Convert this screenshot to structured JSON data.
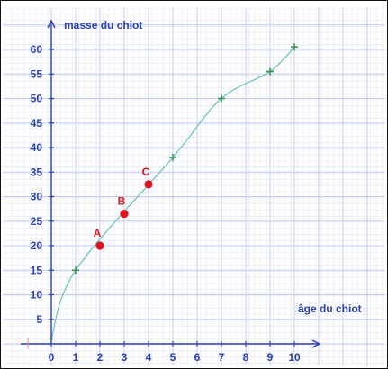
{
  "chart_data": {
    "type": "line",
    "title": "",
    "ylabel": "masse du chiot",
    "xlabel": "âge du chiot",
    "xlim": [
      0,
      10
    ],
    "ylim": [
      0,
      60
    ],
    "x_ticks": [
      0,
      1,
      2,
      3,
      4,
      5,
      6,
      7,
      8,
      9,
      10
    ],
    "y_ticks": [
      5,
      10,
      15,
      20,
      25,
      30,
      35,
      40,
      45,
      50,
      55,
      60
    ],
    "grid": true,
    "series": [
      {
        "x": [
          0,
          1,
          5,
          7,
          9,
          10
        ],
        "y": [
          1,
          15,
          38,
          50,
          55.5,
          60.5
        ],
        "marker": "plus",
        "color": "#3f8f5a"
      }
    ],
    "points": [
      {
        "label": "A",
        "x": 2,
        "y": 20,
        "color": "#e0141e"
      },
      {
        "label": "B",
        "x": 3,
        "y": 26.5,
        "color": "#e0141e"
      },
      {
        "label": "C",
        "x": 4,
        "y": 32.5,
        "color": "#e0141e"
      }
    ],
    "colors": {
      "axis": "#2a3fb4",
      "grid_major": "#c6cdf0",
      "grid_minor": "#e3e7f8",
      "curve": "#6ec6bf"
    }
  }
}
